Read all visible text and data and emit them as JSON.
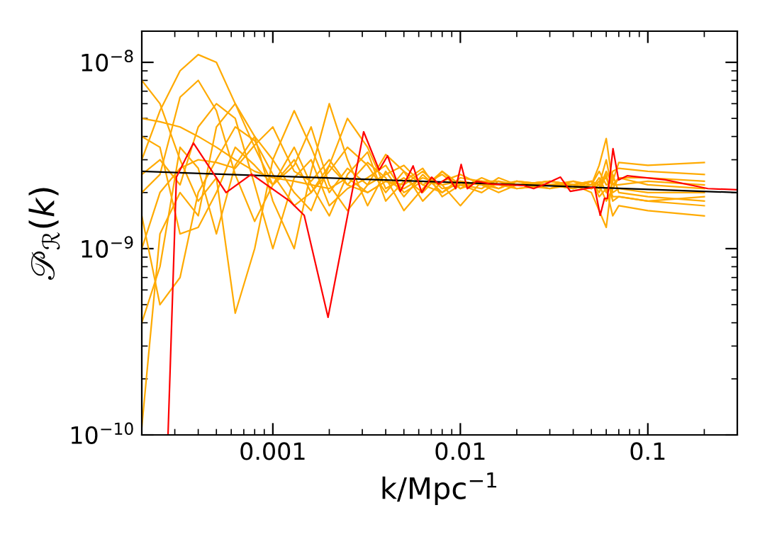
{
  "chart_data": {
    "type": "line",
    "xlabel": "k/Mpc$^{−1}$",
    "ylabel": "𝒫$_{ℛ}$(k)",
    "log": "xy",
    "xlim": [
      0.0002,
      0.3
    ],
    "ylim": [
      1e-10,
      1.47e-08
    ],
    "xticks": [
      0.001,
      0.01,
      0.1
    ],
    "yticks": [
      {
        "value": 1e-10,
        "label": "10$^{−10}$"
      },
      {
        "value": 1e-09,
        "label": "10$^{−9}$"
      },
      {
        "value": 1e-08,
        "label": "10$^{−8}$"
      }
    ],
    "x": [
      0.0002,
      0.00025,
      0.00032,
      0.0004,
      0.0005,
      0.00063,
      0.0008,
      0.001,
      0.0013,
      0.0016,
      0.002,
      0.0025,
      0.0032,
      0.004,
      0.005,
      0.0063,
      0.008,
      0.01,
      0.013,
      0.016,
      0.02,
      0.03,
      0.04,
      0.05,
      0.055,
      0.06,
      0.065,
      0.07,
      0.1,
      0.2
    ],
    "series": [
      {
        "color": "#ffaa00",
        "values": [
          3e-09,
          5.5e-09,
          9e-09,
          1.1e-08,
          1e-08,
          6e-09,
          3.5e-09,
          2.2e-09,
          3e-09,
          2e-09,
          2.6e-09,
          3.5e-09,
          2.8e-09,
          2e-09,
          2.6e-09,
          2.2e-09,
          2.5e-09,
          2.1e-09,
          2.3e-09,
          2.2e-09,
          2.2e-09,
          2.3e-09,
          2.2e-09,
          2.1e-09,
          2.4e-09,
          2e-09,
          2.6e-09,
          2.7e-09,
          2.6e-09,
          2.5e-09
        ]
      },
      {
        "color": "#ffaa00",
        "values": [
          5e-09,
          4.8e-09,
          4.5e-09,
          4e-09,
          3.5e-09,
          3e-09,
          2.6e-09,
          2.4e-09,
          2.3e-09,
          2.2e-09,
          2.1e-09,
          2.4e-09,
          2e-09,
          2.3e-09,
          2.1e-09,
          2.4e-09,
          2.2e-09,
          2.3e-09,
          2.2e-09,
          2.2e-09,
          2.2e-09,
          2.1e-09,
          2.2e-09,
          2e-09,
          1.6e-09,
          1.3e-09,
          2.5e-09,
          2e-09,
          1.9e-09,
          1.8e-09
        ]
      },
      {
        "color": "#ffaa00",
        "values": [
          1.1e-10,
          1.2e-09,
          2e-09,
          1.5e-09,
          4.5e-09,
          6e-09,
          4e-09,
          1.8e-09,
          1e-09,
          2.6e-09,
          6e-09,
          3e-09,
          1.7e-09,
          2.6e-09,
          1.9e-09,
          2.5e-09,
          2e-09,
          2.4e-09,
          2.3e-09,
          2.1e-09,
          2.3e-09,
          2.2e-09,
          2.1e-09,
          2.2e-09,
          2.8e-09,
          3.9e-09,
          2.2e-09,
          2.4e-09,
          2.2e-09,
          2.1e-09
        ]
      },
      {
        "color": "#ffaa00",
        "values": [
          2e-09,
          2.5e-09,
          6.5e-09,
          8e-09,
          5.5e-09,
          2.5e-09,
          1.4e-09,
          2.2e-09,
          3.5e-09,
          2.2e-09,
          1.5e-09,
          2.5e-09,
          3.3e-09,
          1.8e-09,
          2.3e-09,
          2.7e-09,
          1.9e-09,
          2.2e-09,
          2.1e-09,
          2.4e-09,
          2.2e-09,
          2.3e-09,
          2.2e-09,
          2.3e-09,
          2e-09,
          2.5e-09,
          1.8e-09,
          1.9e-09,
          1.8e-09,
          1.7e-09
        ]
      },
      {
        "color": "#ffaa00",
        "values": [
          1.5e-09,
          5e-10,
          7e-10,
          2e-09,
          3e-09,
          4.5e-09,
          3.8e-09,
          2.5e-09,
          1.7e-09,
          2e-09,
          2.8e-09,
          2.2e-09,
          2.9e-09,
          2.4e-09,
          1.6e-09,
          2.1e-09,
          2.6e-09,
          2.2e-09,
          2e-09,
          2.3e-09,
          2.1e-09,
          2.2e-09,
          2.3e-09,
          2.1e-09,
          2.2e-09,
          3e-09,
          2e-09,
          2.1e-09,
          2e-09,
          2e-09
        ]
      },
      {
        "color": "#ffaa00",
        "values": [
          8e-09,
          6e-09,
          3e-09,
          1.8e-09,
          2.4e-09,
          4.5e-10,
          1e-09,
          3e-09,
          5.5e-09,
          3.5e-09,
          2e-09,
          2.7e-09,
          2.2e-09,
          3.2e-09,
          2.6e-09,
          1.8e-09,
          2.3e-09,
          2.5e-09,
          2.2e-09,
          2.1e-09,
          2.3e-09,
          2.2e-09,
          2.1e-09,
          2.2e-09,
          2.6e-09,
          2.2e-09,
          2.3e-09,
          2.9e-09,
          2.8e-09,
          2.9e-09
        ]
      },
      {
        "color": "#ffaa00",
        "values": [
          4e-10,
          8e-10,
          3.5e-09,
          2.7e-09,
          1.2e-09,
          2.8e-09,
          4e-09,
          3e-09,
          2e-09,
          1.6e-09,
          2.8e-09,
          5e-09,
          3.5e-09,
          2.1e-09,
          2.4e-09,
          2e-09,
          2.6e-09,
          2.1e-09,
          2.4e-09,
          2.2e-09,
          2.1e-09,
          2.2e-09,
          2.2e-09,
          2.3e-09,
          1.9e-09,
          2.1e-09,
          1.5e-09,
          1.7e-09,
          1.6e-09,
          1.5e-09
        ]
      },
      {
        "color": "#ffaa00",
        "values": [
          2.5e-09,
          3e-09,
          2.2e-09,
          4.5e-09,
          6e-09,
          5e-09,
          2.2e-09,
          1e-09,
          2.4e-09,
          3e-09,
          1.7e-09,
          2.1e-09,
          2.4e-09,
          2.8e-09,
          2e-09,
          2.3e-09,
          2.2e-09,
          1.7e-09,
          2.3e-09,
          2.2e-09,
          2.3e-09,
          2.1e-09,
          2.3e-09,
          2.2e-09,
          2.1e-09,
          2.6e-09,
          2.2e-09,
          2.2e-09,
          2.3e-09,
          2.2e-09
        ]
      },
      {
        "color": "#ffaa00",
        "values": [
          4e-09,
          3.5e-09,
          1.2e-09,
          1.3e-09,
          2e-09,
          3.5e-09,
          2.8e-09,
          2.2e-09,
          2.8e-09,
          4.5e-09,
          2.2e-09,
          1.6e-09,
          2.2e-09,
          2.5e-09,
          2.8e-09,
          2.2e-09,
          2e-09,
          2.3e-09,
          2.2e-09,
          2e-09,
          2.2e-09,
          2.3e-09,
          2.2e-09,
          2.1e-09,
          2.3e-09,
          2.4e-09,
          1.9e-09,
          1.9e-09,
          1.8e-09,
          1.9e-09
        ]
      },
      {
        "color": "#ffaa00",
        "values": [
          1e-09,
          2e-09,
          2.7e-09,
          3e-09,
          2.9e-09,
          2.7e-09,
          3.6e-09,
          4.5e-09,
          2.6e-09,
          2.3e-09,
          3e-09,
          2.2e-09,
          2e-09,
          2.3e-09,
          2.2e-09,
          2.6e-09,
          2.1e-09,
          2.2e-09,
          2.3e-09,
          2.3e-09,
          2.2e-09,
          2.2e-09,
          2.1e-09,
          2.3e-09,
          2.2e-09,
          1.8e-09,
          2.1e-09,
          2.4e-09,
          2.4e-09,
          2.3e-09
        ]
      },
      {
        "color": "#000000",
        "x": [
          0.0002,
          0.3
        ],
        "values": [
          2.6e-09,
          2e-09
        ]
      },
      {
        "color": "#ff0000",
        "x": [
          0.000276,
          0.000306,
          0.000377,
          0.000563,
          0.00077,
          0.00123,
          0.00147,
          0.00197,
          0.00305,
          0.00369,
          0.00409,
          0.00479,
          0.0056,
          0.00622,
          0.00703,
          0.00766,
          0.00865,
          0.00944,
          0.0101,
          0.0109,
          0.0122,
          0.0146,
          0.0218,
          0.0246,
          0.0283,
          0.0342,
          0.0386,
          0.052,
          0.0557,
          0.0587,
          0.0608,
          0.0652,
          0.0698,
          0.0776,
          0.124,
          0.209,
          0.296
        ],
        "values": [
          1e-10,
          2.42e-09,
          3.69e-09,
          2e-09,
          2.51e-09,
          1.8e-09,
          1.51e-09,
          4.28e-10,
          4.24e-09,
          2.64e-09,
          3.15e-09,
          2.03e-09,
          2.78e-09,
          2e-09,
          2.42e-09,
          2.22e-09,
          2.42e-09,
          2.1e-09,
          2.83e-09,
          2.1e-09,
          2.3e-09,
          2.22e-09,
          2.18e-09,
          2.1e-09,
          2.22e-09,
          2.42e-09,
          2.03e-09,
          2.14e-09,
          1.51e-09,
          1.86e-09,
          1.86e-09,
          3.44e-09,
          2.34e-09,
          2.46e-09,
          2.34e-09,
          2.1e-09,
          2.07e-09
        ]
      }
    ]
  }
}
